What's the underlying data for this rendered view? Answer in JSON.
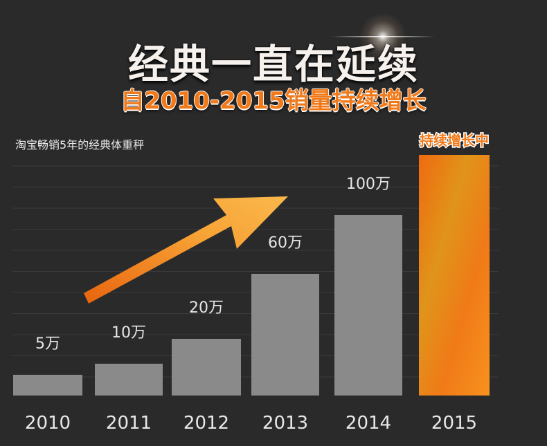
{
  "header": {
    "title": "经典一直在延续",
    "subtitle": "自2010-2015销量持续增长"
  },
  "caption": "淘宝畅销5年的经典体重秤",
  "colors": {
    "background": "#2a2a2b",
    "bar": "#8a8a8a",
    "highlight_bar": "#f5821f",
    "accent": "#f07a1a",
    "label": "#e6e6e6"
  },
  "chart_data": {
    "type": "bar",
    "categories": [
      "2010",
      "2011",
      "2012",
      "2013",
      "2014",
      "2015"
    ],
    "values": [
      5,
      10,
      20,
      60,
      100,
      null
    ],
    "data_labels": [
      "5万",
      "10万",
      "20万",
      "60万",
      "100万",
      "持续增长中"
    ],
    "highlight_category": "2015",
    "highlight_label": "持续增长中",
    "grid": true,
    "trend_arrow": "rising"
  }
}
